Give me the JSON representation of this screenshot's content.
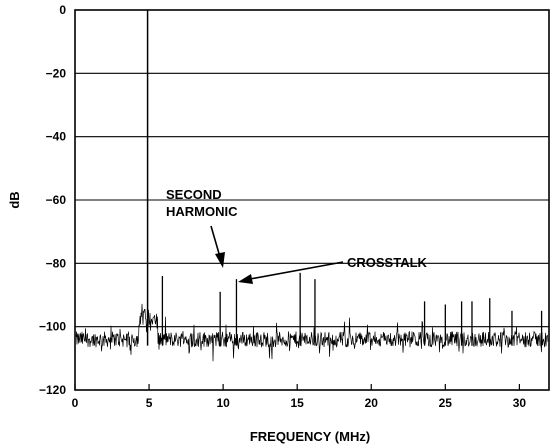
{
  "chart_data": {
    "type": "line",
    "xlabel": "FREQUENCY (MHz)",
    "ylabel": "dB",
    "xlim": [
      0,
      32
    ],
    "ylim": [
      -120,
      0
    ],
    "x_ticks": [
      0,
      5,
      10,
      15,
      20,
      25,
      30
    ],
    "y_ticks": [
      0,
      -20,
      -40,
      -60,
      -80,
      -100,
      -120
    ],
    "grid": "horizontal",
    "noise_floor_db": -104,
    "series": [
      {
        "peaks": [
          {
            "x": 4.9,
            "y": 0
          },
          {
            "x": 5.9,
            "y": -84
          },
          {
            "x": 9.8,
            "y": -89
          },
          {
            "x": 10.9,
            "y": -85
          },
          {
            "x": 15.2,
            "y": -83
          },
          {
            "x": 16.2,
            "y": -85
          },
          {
            "x": 23.6,
            "y": -92
          },
          {
            "x": 25.0,
            "y": -93
          },
          {
            "x": 26.1,
            "y": -92
          },
          {
            "x": 26.8,
            "y": -92
          },
          {
            "x": 28.0,
            "y": -91
          },
          {
            "x": 29.5,
            "y": -95
          },
          {
            "x": 31.5,
            "y": -95
          }
        ]
      }
    ],
    "annotations": [
      {
        "text": "SECOND",
        "points_to": {
          "x": 9.8,
          "y": -89
        }
      },
      {
        "text": "HARMONIC",
        "points_to": {
          "x": 9.8,
          "y": -89
        }
      },
      {
        "text": "CROSSTALK",
        "points_to": {
          "x": 10.9,
          "y": -85
        }
      }
    ]
  }
}
